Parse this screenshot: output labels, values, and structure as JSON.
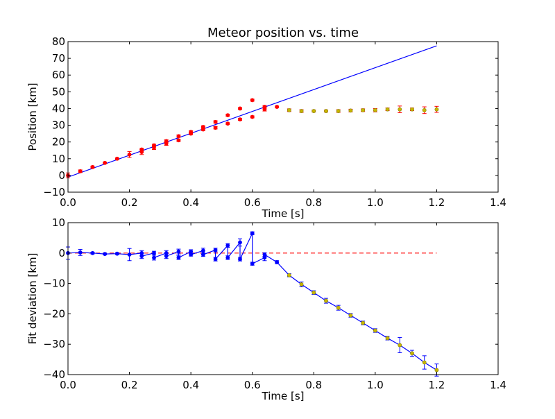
{
  "chart_data": [
    {
      "type": "scatter",
      "title": "Meteor position vs. time",
      "xlabel": "Time [s]",
      "ylabel": "Position [km]",
      "xlim": [
        0.0,
        1.4
      ],
      "ylim": [
        -10,
        80
      ],
      "xticks": [
        "0.0",
        "0.2",
        "0.4",
        "0.6",
        "0.8",
        "1.0",
        "1.2",
        "1.4"
      ],
      "yticks": [
        "−10",
        "0",
        "10",
        "20",
        "30",
        "40",
        "50",
        "60",
        "70",
        "80"
      ],
      "grid": false,
      "series": [
        {
          "role": "fit-line",
          "color": "#0000ff",
          "x": [
            0.0,
            1.2
          ],
          "y": [
            -1.0,
            77.5
          ]
        },
        {
          "role": "early-measurements",
          "color": "#ff0000",
          "x": [
            0.0,
            0.04,
            0.08,
            0.12,
            0.16,
            0.2,
            0.24,
            0.24,
            0.28,
            0.28,
            0.32,
            0.32,
            0.36,
            0.36,
            0.4,
            0.4,
            0.44,
            0.44,
            0.48,
            0.48,
            0.52,
            0.52,
            0.56,
            0.56,
            0.6,
            0.6,
            0.64,
            0.64,
            0.68
          ],
          "y": [
            0.0,
            2.5,
            5.0,
            7.5,
            10.0,
            12.5,
            14.0,
            15.5,
            16.5,
            18.0,
            19.0,
            20.5,
            21.0,
            23.5,
            25.0,
            26.0,
            27.5,
            29.0,
            28.5,
            32.0,
            31.0,
            36.0,
            33.5,
            40.0,
            35.0,
            45.0,
            39.5,
            41.0,
            41.0
          ],
          "yerr": [
            1.5,
            0.8,
            0.6,
            0.5,
            0.5,
            1.8,
            1.5,
            0.7,
            1.0,
            0.7,
            1.0,
            0.8,
            0.7,
            0.7,
            0.7,
            0.7,
            0.7,
            0.7,
            0.7,
            0.7,
            0.5,
            0.6,
            0.6,
            0.6,
            0.6,
            0.6,
            1.0,
            0.8,
            0.5
          ]
        },
        {
          "role": "late-measurements",
          "color": "#c8b400",
          "x": [
            0.72,
            0.76,
            0.8,
            0.84,
            0.88,
            0.92,
            0.96,
            1.0,
            1.04,
            1.08,
            1.12,
            1.16,
            1.2
          ],
          "y": [
            39.0,
            38.5,
            38.5,
            38.5,
            38.5,
            38.8,
            39.0,
            39.0,
            39.5,
            39.5,
            39.5,
            39.0,
            39.5
          ],
          "yerr": [
            0.8,
            0.8,
            0.6,
            0.6,
            0.8,
            0.8,
            0.8,
            1.0,
            0.8,
            2.0,
            0.8,
            2.0,
            1.8
          ]
        }
      ]
    },
    {
      "type": "line",
      "title": "",
      "xlabel": "Time [s]",
      "ylabel": "Fit deviation [km]",
      "xlim": [
        0.0,
        1.4
      ],
      "ylim": [
        -40,
        10
      ],
      "xticks": [
        "0.0",
        "0.2",
        "0.4",
        "0.6",
        "0.8",
        "1.0",
        "1.2",
        "1.4"
      ],
      "yticks": [
        "−40",
        "−30",
        "−20",
        "−10",
        "0",
        "10"
      ],
      "grid": false,
      "series": [
        {
          "role": "zero-reference",
          "color": "#ff0000",
          "style": "dashed",
          "x": [
            0.0,
            1.2
          ],
          "y": [
            0.0,
            0.0
          ]
        },
        {
          "role": "deviation",
          "color": "#0000ff",
          "x": [
            0.0,
            0.04,
            0.08,
            0.12,
            0.16,
            0.2,
            0.24,
            0.24,
            0.28,
            0.28,
            0.32,
            0.32,
            0.36,
            0.36,
            0.4,
            0.4,
            0.44,
            0.44,
            0.48,
            0.48,
            0.52,
            0.52,
            0.56,
            0.56,
            0.6,
            0.6,
            0.64,
            0.64,
            0.68,
            0.72,
            0.76,
            0.8,
            0.84,
            0.88,
            0.92,
            0.96,
            1.0,
            1.04,
            1.08,
            1.12,
            1.16,
            1.2
          ],
          "y": [
            0.0,
            0.2,
            0.0,
            -0.3,
            -0.2,
            -0.5,
            0.0,
            -1.0,
            0.0,
            -1.5,
            0.0,
            -1.0,
            0.5,
            -1.5,
            0.5,
            -0.5,
            0.8,
            -0.5,
            1.0,
            -2.0,
            2.5,
            -1.5,
            3.5,
            -2.0,
            6.5,
            -3.5,
            -1.5,
            -0.5,
            -3.0,
            -7.3,
            -10.3,
            -13.0,
            -15.7,
            -18.0,
            -20.5,
            -23.0,
            -25.5,
            -28.0,
            -30.3,
            -33.0,
            -36.0,
            -38.5
          ],
          "yerr": [
            2.0,
            1.0,
            0.3,
            0.3,
            0.3,
            2.0,
            0.8,
            0.8,
            0.6,
            0.8,
            0.8,
            0.8,
            0.8,
            0.6,
            0.6,
            0.5,
            0.8,
            0.6,
            0.6,
            0.6,
            0.6,
            0.6,
            1.2,
            0.6,
            0.5,
            0.5,
            1.0,
            0.6,
            0.5,
            0.5,
            0.8,
            0.6,
            0.8,
            0.8,
            0.6,
            0.6,
            0.6,
            0.6,
            2.5,
            1.0,
            2.2,
            2.0
          ],
          "marker_colors": [
            "#0000ff",
            "#0000ff",
            "#0000ff",
            "#0000ff",
            "#0000ff",
            "#0000ff",
            "#0000ff",
            "#0000ff",
            "#0000ff",
            "#0000ff",
            "#0000ff",
            "#0000ff",
            "#0000ff",
            "#0000ff",
            "#0000ff",
            "#0000ff",
            "#0000ff",
            "#0000ff",
            "#0000ff",
            "#0000ff",
            "#0000ff",
            "#0000ff",
            "#0000ff",
            "#0000ff",
            "#0000ff",
            "#0000ff",
            "#0000ff",
            "#0000ff",
            "#0000ff",
            "#c8b400",
            "#c8b400",
            "#c8b400",
            "#c8b400",
            "#c8b400",
            "#c8b400",
            "#c8b400",
            "#c8b400",
            "#c8b400",
            "#c8b400",
            "#c8b400",
            "#c8b400",
            "#c8b400"
          ]
        }
      ]
    }
  ]
}
